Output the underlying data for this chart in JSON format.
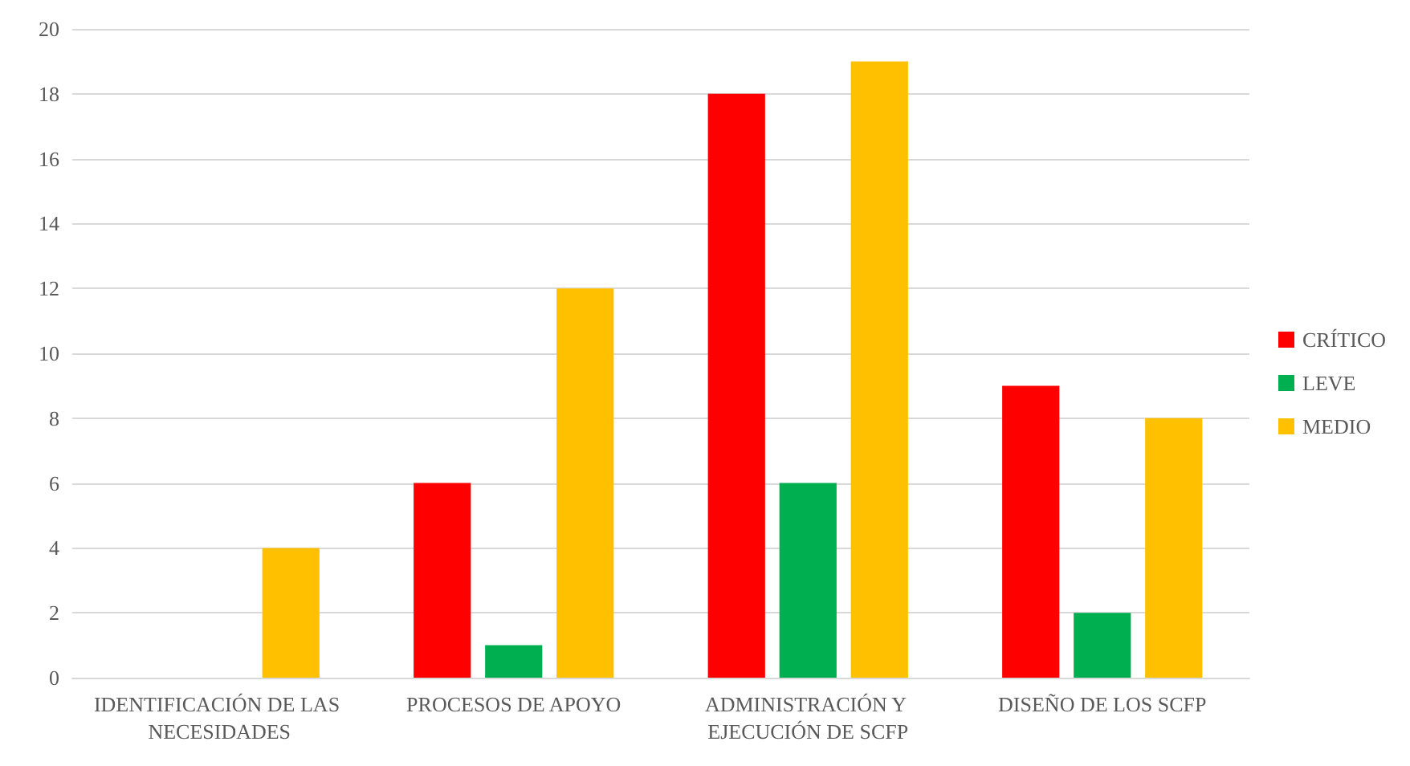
{
  "chart_data": {
    "type": "bar",
    "categories": [
      "IDENTIFICACIÓN DE LAS NECESIDADES",
      "PROCESOS DE APOYO",
      "ADMINISTRACIÓN Y EJECUCIÓN DE SCFP",
      "DISEÑO DE LOS SCFP"
    ],
    "series": [
      {
        "name": "CRÍTICO",
        "color": "#ff0000",
        "values": [
          null,
          6,
          18,
          9
        ]
      },
      {
        "name": "LEVE",
        "color": "#00b050",
        "values": [
          null,
          1,
          6,
          2
        ]
      },
      {
        "name": "MEDIO",
        "color": "#ffc000",
        "values": [
          4,
          12,
          19,
          8
        ]
      }
    ],
    "ylim": [
      0,
      20
    ],
    "yticks": [
      0,
      2,
      4,
      6,
      8,
      10,
      12,
      14,
      16,
      18,
      20
    ],
    "grid": "y",
    "legend": "right"
  }
}
